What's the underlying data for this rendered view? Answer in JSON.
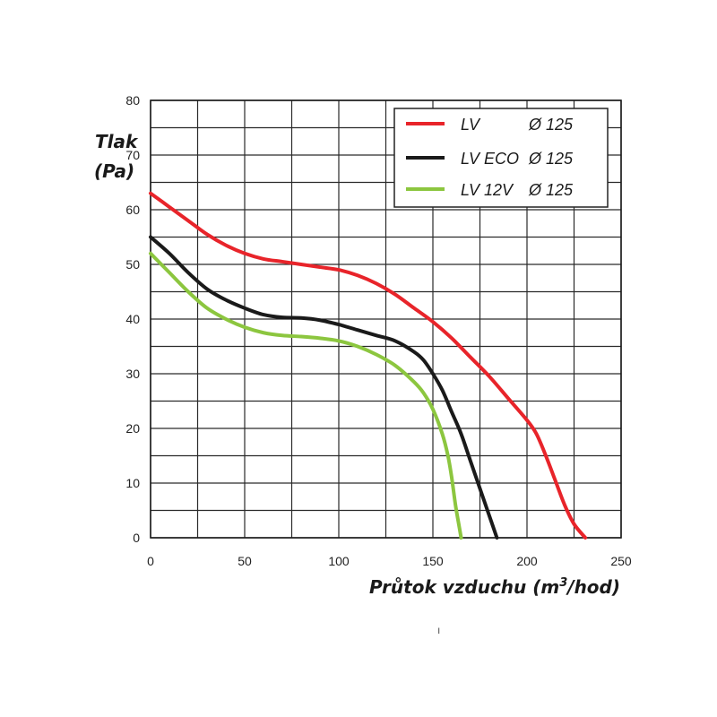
{
  "chart_data": {
    "type": "line",
    "ylabel_line1": "Tlak",
    "ylabel_line2": "(Pa)",
    "xlabel_prefix": "Průtok vzduchu (m",
    "xlabel_sup": "3",
    "xlabel_suffix": "/hod)",
    "xlim": [
      0,
      250
    ],
    "ylim": [
      0,
      80
    ],
    "x_ticks": [
      0,
      50,
      100,
      150,
      200,
      250
    ],
    "y_ticks": [
      0,
      10,
      20,
      30,
      40,
      50,
      60,
      70,
      80
    ],
    "x_tick_labels": [
      "0",
      "50",
      "100",
      "150",
      "200",
      "250"
    ],
    "y_tick_labels": [
      "0",
      "10",
      "20",
      "30",
      "40",
      "50",
      "60",
      "70",
      "80"
    ],
    "grid": true,
    "grid_x_step": 25,
    "grid_y_step": 5,
    "legend_position": "top-right",
    "series": [
      {
        "name": "LV",
        "diameter": "Ø 125",
        "color": "#e8242a",
        "points": [
          [
            0,
            63
          ],
          [
            10,
            60.5
          ],
          [
            20,
            58
          ],
          [
            30,
            55.5
          ],
          [
            40,
            53.5
          ],
          [
            50,
            52
          ],
          [
            60,
            51
          ],
          [
            70,
            50.5
          ],
          [
            80,
            50
          ],
          [
            90,
            49.5
          ],
          [
            100,
            49
          ],
          [
            110,
            48
          ],
          [
            120,
            46.5
          ],
          [
            130,
            44.5
          ],
          [
            140,
            42
          ],
          [
            150,
            39.5
          ],
          [
            160,
            36.5
          ],
          [
            170,
            33
          ],
          [
            180,
            29.5
          ],
          [
            190,
            25.5
          ],
          [
            200,
            21.5
          ],
          [
            205,
            19
          ],
          [
            210,
            15
          ],
          [
            215,
            10.5
          ],
          [
            220,
            6
          ],
          [
            225,
            2.5
          ],
          [
            231,
            0
          ]
        ]
      },
      {
        "name": "LV ECO",
        "diameter": "Ø 125",
        "color": "#1a1a1a",
        "points": [
          [
            0,
            55
          ],
          [
            10,
            52
          ],
          [
            20,
            48.5
          ],
          [
            30,
            45.5
          ],
          [
            40,
            43.5
          ],
          [
            50,
            42
          ],
          [
            60,
            40.8
          ],
          [
            70,
            40.3
          ],
          [
            80,
            40.2
          ],
          [
            90,
            39.8
          ],
          [
            100,
            39
          ],
          [
            110,
            38
          ],
          [
            120,
            37
          ],
          [
            130,
            36
          ],
          [
            140,
            34
          ],
          [
            145,
            32.5
          ],
          [
            150,
            30
          ],
          [
            155,
            27
          ],
          [
            160,
            23
          ],
          [
            165,
            19
          ],
          [
            170,
            14
          ],
          [
            175,
            9
          ],
          [
            180,
            4
          ],
          [
            184,
            0
          ]
        ]
      },
      {
        "name": "LV 12V",
        "diameter": "Ø 125",
        "color": "#8cc63f",
        "points": [
          [
            0,
            52
          ],
          [
            10,
            48.5
          ],
          [
            20,
            45
          ],
          [
            30,
            42
          ],
          [
            40,
            40
          ],
          [
            50,
            38.5
          ],
          [
            60,
            37.5
          ],
          [
            70,
            37
          ],
          [
            80,
            36.8
          ],
          [
            90,
            36.5
          ],
          [
            100,
            36
          ],
          [
            110,
            35
          ],
          [
            120,
            33.5
          ],
          [
            130,
            31.5
          ],
          [
            140,
            28.5
          ],
          [
            145,
            26.5
          ],
          [
            150,
            23.5
          ],
          [
            155,
            19
          ],
          [
            158,
            15
          ],
          [
            160,
            11
          ],
          [
            162,
            6
          ],
          [
            164,
            2
          ],
          [
            165,
            0
          ]
        ]
      }
    ]
  },
  "stray_mark": "ı"
}
